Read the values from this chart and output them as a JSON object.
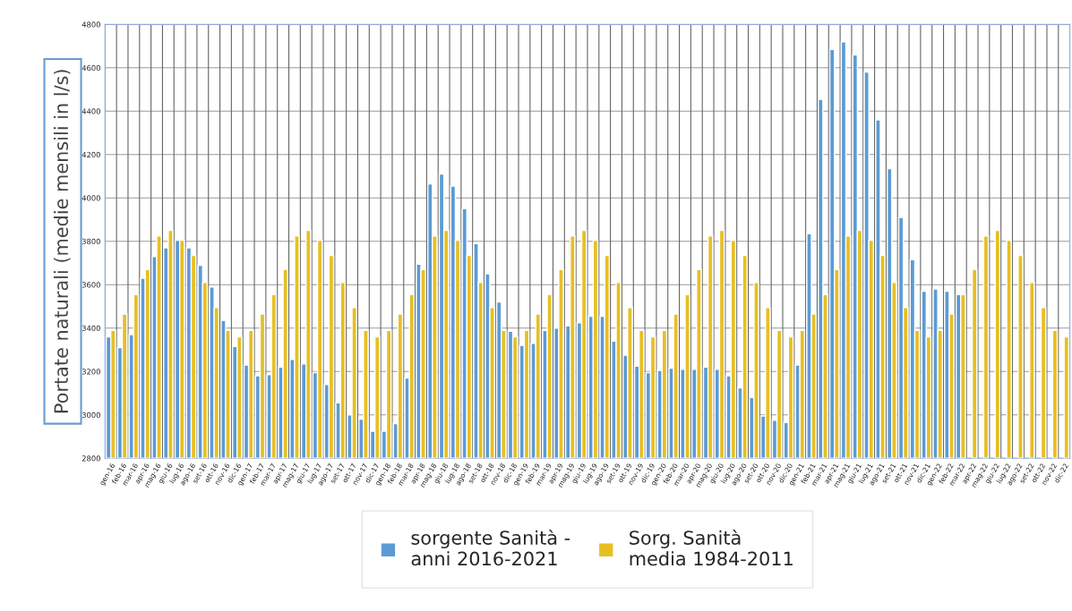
{
  "chart_data": {
    "type": "bar",
    "ylabel": "Portate naturali (medie mensili in l/s)",
    "categories": [
      "gen-16",
      "feb-16",
      "mar-16",
      "apr-16",
      "mag-16",
      "giu-16",
      "lug-16",
      "ago-16",
      "set-16",
      "ott-16",
      "nov-16",
      "dic-16",
      "gen-17",
      "feb-17",
      "mar-17",
      "apr-17",
      "mag-17",
      "giu-17",
      "lug-17",
      "ago-17",
      "set-17",
      "ott-17",
      "nov-17",
      "dic-17",
      "gen-18",
      "feb-18",
      "mar-18",
      "apr-18",
      "mag-18",
      "giu-18",
      "lug-18",
      "ago-18",
      "set-18",
      "ott-18",
      "nov-18",
      "dic-18",
      "gen-19",
      "feb-19",
      "mar-19",
      "apr-19",
      "mag-19",
      "giu-19",
      "lug-19",
      "ago-19",
      "set-19",
      "ott-19",
      "nov-19",
      "dic-19",
      "gen-20",
      "feb-20",
      "mar-20",
      "apr-20",
      "mag-20",
      "giu-20",
      "lug-20",
      "ago-20",
      "set-20",
      "ott-20",
      "nov-20",
      "dic-20",
      "gen-21",
      "feb-21",
      "mar-21",
      "apr-21",
      "mag-21",
      "giu-21",
      "lug-21",
      "ago-21",
      "set-21",
      "ott-21",
      "nov-21",
      "dic-21",
      "gen-22",
      "feb-22",
      "mar-22",
      "apr-22",
      "mag-22",
      "giu-22",
      "lug-22",
      "ago-22",
      "set-22",
      "ott-22",
      "nov-22",
      "dic-22"
    ],
    "series": [
      {
        "name": "sorgente Sanità -\nanni 2016-2021",
        "color": "#5b9bd5",
        "values": [
          3360,
          3310,
          3370,
          3630,
          3730,
          3770,
          3805,
          3770,
          3690,
          3590,
          3435,
          3315,
          3230,
          3180,
          3185,
          3220,
          3255,
          3235,
          3195,
          3140,
          3055,
          3000,
          2980,
          2925,
          2925,
          2960,
          3170,
          3695,
          4065,
          4110,
          4055,
          3950,
          3790,
          3650,
          3520,
          3385,
          3320,
          3330,
          3390,
          3400,
          3410,
          3425,
          3455,
          3455,
          3340,
          3275,
          3225,
          3195,
          3205,
          3215,
          3210,
          3210,
          3220,
          3210,
          3180,
          3125,
          3080,
          2995,
          2975,
          2965,
          3230,
          3835,
          4455,
          4685,
          4720,
          4660,
          4580,
          4360,
          4135,
          3910,
          3715,
          3570,
          3580,
          3570,
          3555,
          null,
          null,
          null,
          null,
          null,
          null,
          null,
          null,
          null
        ]
      },
      {
        "name": "Sorg. Sanità\nmedia 1984-2011",
        "color": "#e8bf22",
        "values": [
          3390,
          3465,
          3555,
          3670,
          3825,
          3850,
          3805,
          3735,
          3610,
          3495,
          3390,
          3360,
          3390,
          3465,
          3555,
          3670,
          3825,
          3850,
          3805,
          3735,
          3610,
          3495,
          3390,
          3360,
          3390,
          3465,
          3555,
          3670,
          3825,
          3850,
          3805,
          3735,
          3610,
          3495,
          3390,
          3360,
          3390,
          3465,
          3555,
          3670,
          3825,
          3850,
          3805,
          3735,
          3610,
          3495,
          3390,
          3360,
          3390,
          3465,
          3555,
          3670,
          3825,
          3850,
          3805,
          3735,
          3610,
          3495,
          3390,
          3360,
          3390,
          3465,
          3555,
          3670,
          3825,
          3850,
          3805,
          3735,
          3610,
          3495,
          3390,
          3360,
          3390,
          3465,
          3555,
          3670,
          3825,
          3850,
          3805,
          3735,
          3610,
          3495,
          3390,
          3360
        ]
      }
    ],
    "ylim": [
      2800,
      4800
    ],
    "yticks": [
      2800,
      3000,
      3200,
      3400,
      3600,
      3800,
      4000,
      4200,
      4400,
      4600,
      4800
    ],
    "grid": true,
    "legend": "bottom"
  }
}
